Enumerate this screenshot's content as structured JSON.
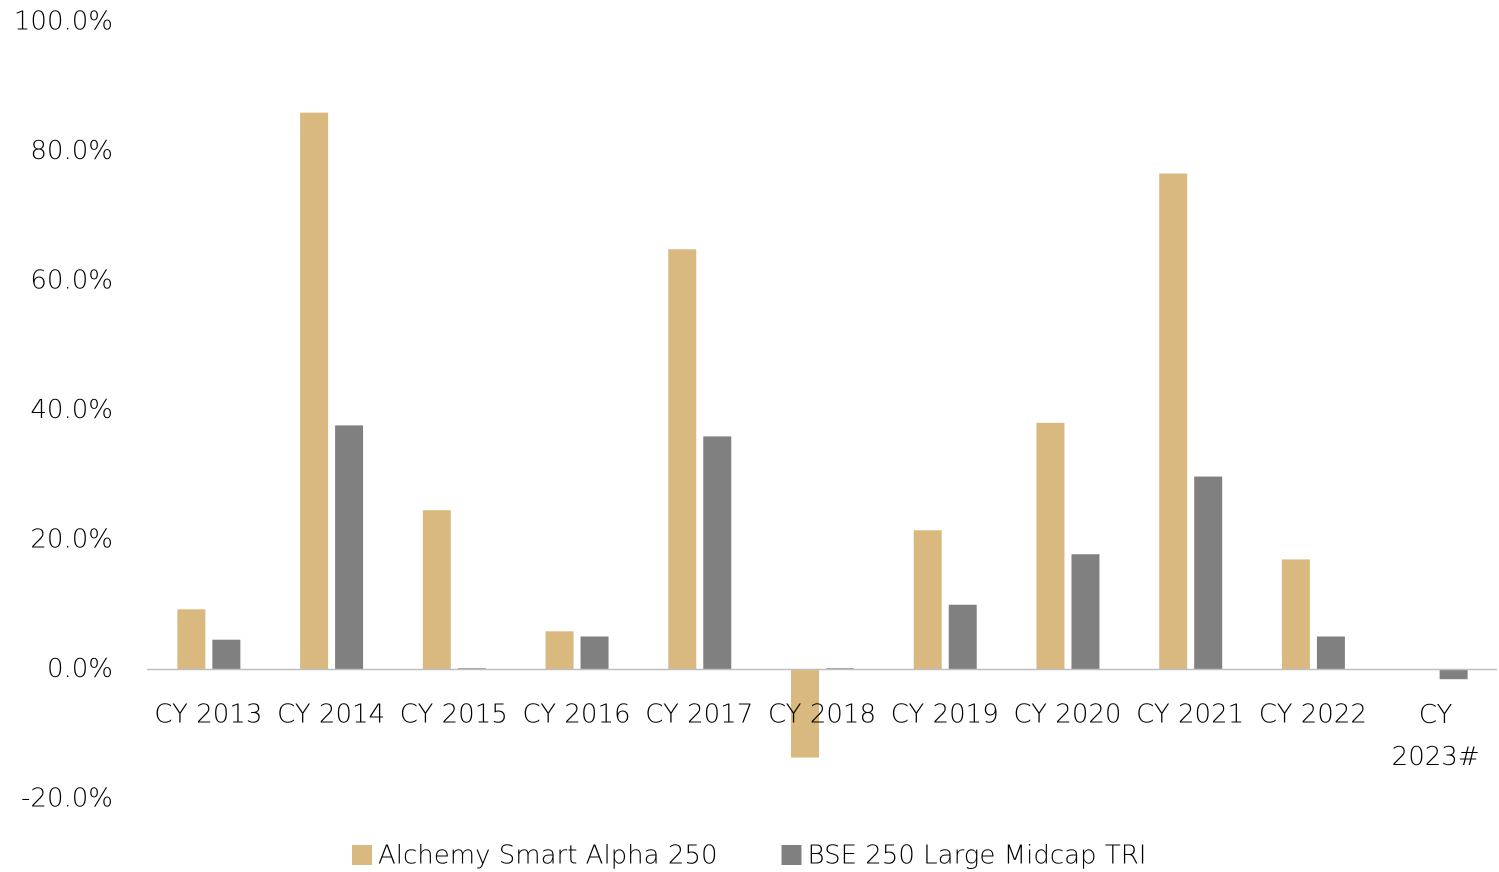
{
  "chart_data": {
    "type": "bar",
    "categories": [
      "CY 2013",
      "CY 2014",
      "CY 2015",
      "CY 2016",
      "CY 2017",
      "CY 2018",
      "CY 2019",
      "CY 2020",
      "CY 2021",
      "CY 2022",
      "CY 2023#"
    ],
    "series": [
      {
        "name": "Alchemy Smart Alpha 250",
        "color": "#d9b97f",
        "values": [
          9.3,
          86.0,
          24.6,
          5.9,
          64.9,
          -13.6,
          21.5,
          38.1,
          76.6,
          17.0,
          null
        ]
      },
      {
        "name": "BSE 250 Large Midcap TRI",
        "color": "#808080",
        "values": [
          4.6,
          37.7,
          0.2,
          5.1,
          36.0,
          0.2,
          10.0,
          17.8,
          29.8,
          5.1,
          -1.5
        ]
      }
    ],
    "ylim": [
      -20,
      100
    ],
    "yticks": [
      {
        "value": -20,
        "label": "-20.0%"
      },
      {
        "value": 0,
        "label": "0.0%"
      },
      {
        "value": 20,
        "label": "20.0%"
      },
      {
        "value": 40,
        "label": "40.0%"
      },
      {
        "value": 60,
        "label": "60.0%"
      },
      {
        "value": 80,
        "label": "80.0%"
      },
      {
        "value": 100,
        "label": "100.0%"
      }
    ],
    "grid": false,
    "legend": "bottom"
  }
}
